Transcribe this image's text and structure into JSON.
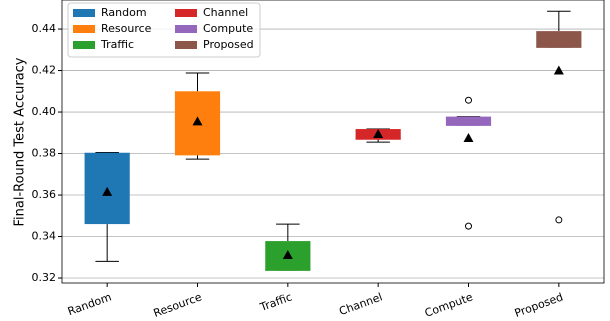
{
  "chart_data": {
    "type": "box",
    "ylabel": "Final-Round Test Accuracy",
    "categories": [
      "Random",
      "Resource",
      "Traffic",
      "Channel",
      "Compute",
      "Proposed"
    ],
    "colors": [
      "#1f77b4",
      "#ff7f0e",
      "#2ca02c",
      "#d62728",
      "#9467bd",
      "#8c564b"
    ],
    "boxes": [
      {
        "min": 0.328,
        "q1": 0.346,
        "median": 0.38,
        "q3": 0.38,
        "max": 0.3805,
        "mean": 0.3615,
        "fliers": []
      },
      {
        "min": 0.3773,
        "q1": 0.3795,
        "median": 0.3795,
        "q3": 0.41,
        "max": 0.4188,
        "mean": 0.3955,
        "fliers": []
      },
      {
        "min": 0.3238,
        "q1": 0.3238,
        "median": 0.3238,
        "q3": 0.3378,
        "max": 0.346,
        "mean": 0.3311,
        "fliers": []
      },
      {
        "min": 0.3855,
        "q1": 0.387,
        "median": 0.387,
        "q3": 0.3918,
        "max": 0.3918,
        "mean": 0.3894,
        "fliers": []
      },
      {
        "min": 0.3937,
        "q1": 0.3937,
        "median": 0.3937,
        "q3": 0.3978,
        "max": 0.3978,
        "mean": 0.3875,
        "fliers": [
          0.4057,
          0.345
        ]
      },
      {
        "min": 0.4313,
        "q1": 0.4313,
        "median": 0.4313,
        "q3": 0.439,
        "max": 0.4486,
        "mean": 0.42,
        "fliers": [
          0.348
        ]
      }
    ],
    "ylim": [
      0.3176,
      0.454
    ],
    "yticks": [
      0.32,
      0.34,
      0.36,
      0.38,
      {
        "value": 0.4,
        "label": "0.40"
      },
      0.42,
      0.44
    ],
    "grid": true,
    "legend": "upper left"
  }
}
